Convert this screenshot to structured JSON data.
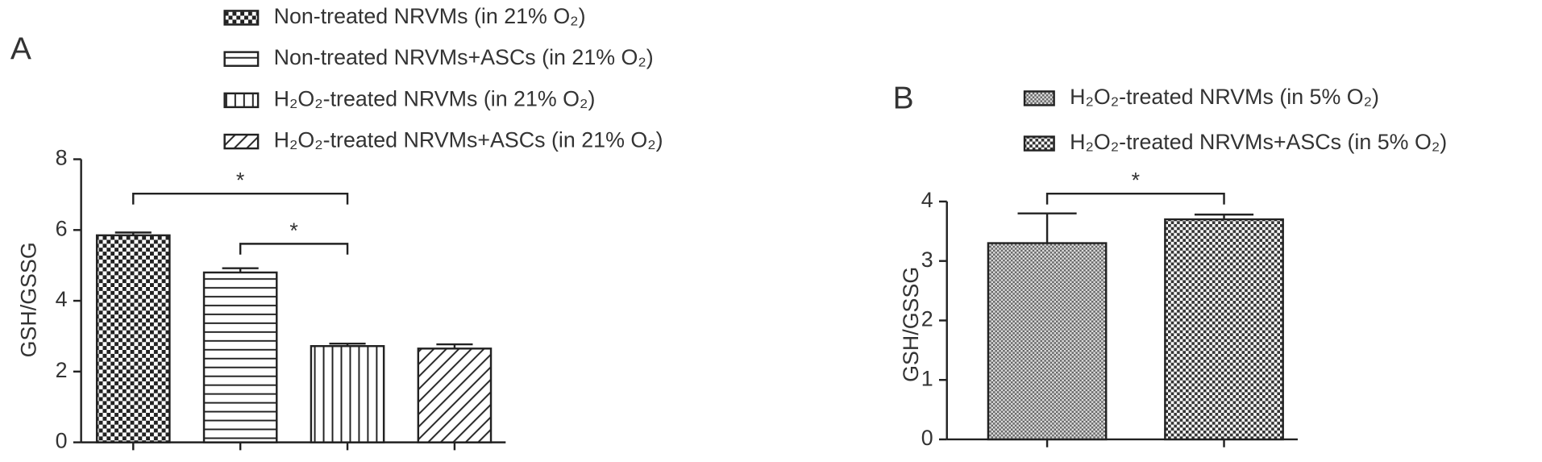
{
  "chart_data": [
    {
      "type": "bar",
      "panel": "A",
      "ylabel": "GSH/GSSG",
      "ylim": [
        0,
        8
      ],
      "yticks": [
        0,
        2,
        4,
        6,
        8
      ],
      "series": [
        {
          "name": "Non-treated NRVMs (in 21% O₂)",
          "pattern": "checker",
          "values": [
            5.85
          ],
          "errors": [
            0.08
          ]
        },
        {
          "name": "Non-treated NRVMs+ASCs (in 21% O₂)",
          "pattern": "hlines",
          "values": [
            4.8
          ],
          "errors": [
            0.12
          ]
        },
        {
          "name": "H₂O₂-treated NRVMs (in 21% O₂)",
          "pattern": "vlines",
          "values": [
            2.72
          ],
          "errors": [
            0.07
          ]
        },
        {
          "name": "H₂O₂-treated NRVMs+ASCs (in 21% O₂)",
          "pattern": "diag",
          "values": [
            2.65
          ],
          "errors": [
            0.12
          ]
        }
      ],
      "annotations": [
        "*",
        "*"
      ]
    },
    {
      "type": "bar",
      "panel": "B",
      "ylabel": "GSH/GSSG",
      "ylim": [
        0,
        4
      ],
      "yticks": [
        0,
        1,
        2,
        3,
        4
      ],
      "series": [
        {
          "name": "H₂O₂-treated NRVMs (in 5% O₂)",
          "pattern": "fine",
          "values": [
            3.3
          ],
          "errors": [
            0.5
          ]
        },
        {
          "name": "H₂O₂-treated NRVMs+ASCs (in 5% O₂)",
          "pattern": "dots",
          "values": [
            3.7
          ],
          "errors": [
            0.08
          ]
        }
      ],
      "annotations": [
        "*"
      ]
    }
  ]
}
